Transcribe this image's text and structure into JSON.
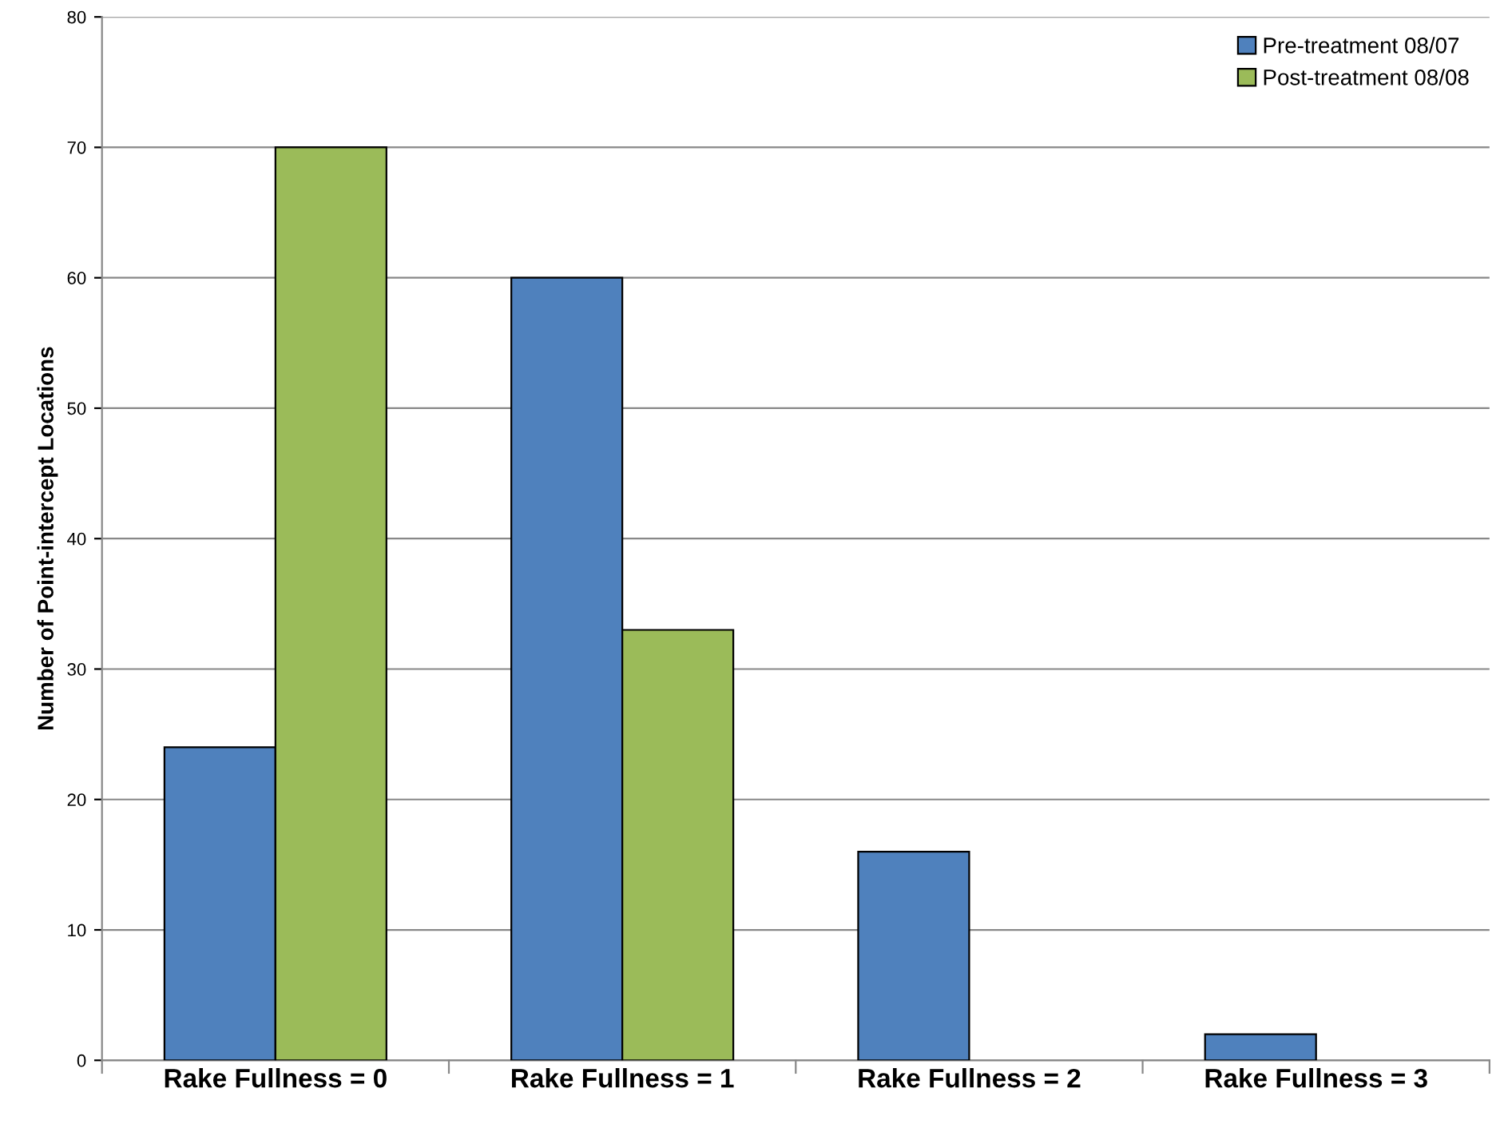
{
  "chart_data": {
    "type": "bar",
    "ylabel": "Number of Point-intercept Locations",
    "categories": [
      "Rake Fullness = 0",
      "Rake Fullness = 1",
      "Rake Fullness = 2",
      "Rake Fullness = 3"
    ],
    "series": [
      {
        "name": "Pre-treatment 08/07",
        "color": "#4f81bd",
        "values": [
          24,
          60,
          16,
          2
        ]
      },
      {
        "name": "Post-treatment 08/08",
        "color": "#9bbb59",
        "values": [
          70,
          33,
          null,
          null
        ]
      }
    ],
    "ylim": [
      0,
      80
    ],
    "yticks": [
      0,
      10,
      20,
      30,
      40,
      50,
      60,
      70,
      80
    ],
    "grid": "y",
    "legend": "top right"
  }
}
